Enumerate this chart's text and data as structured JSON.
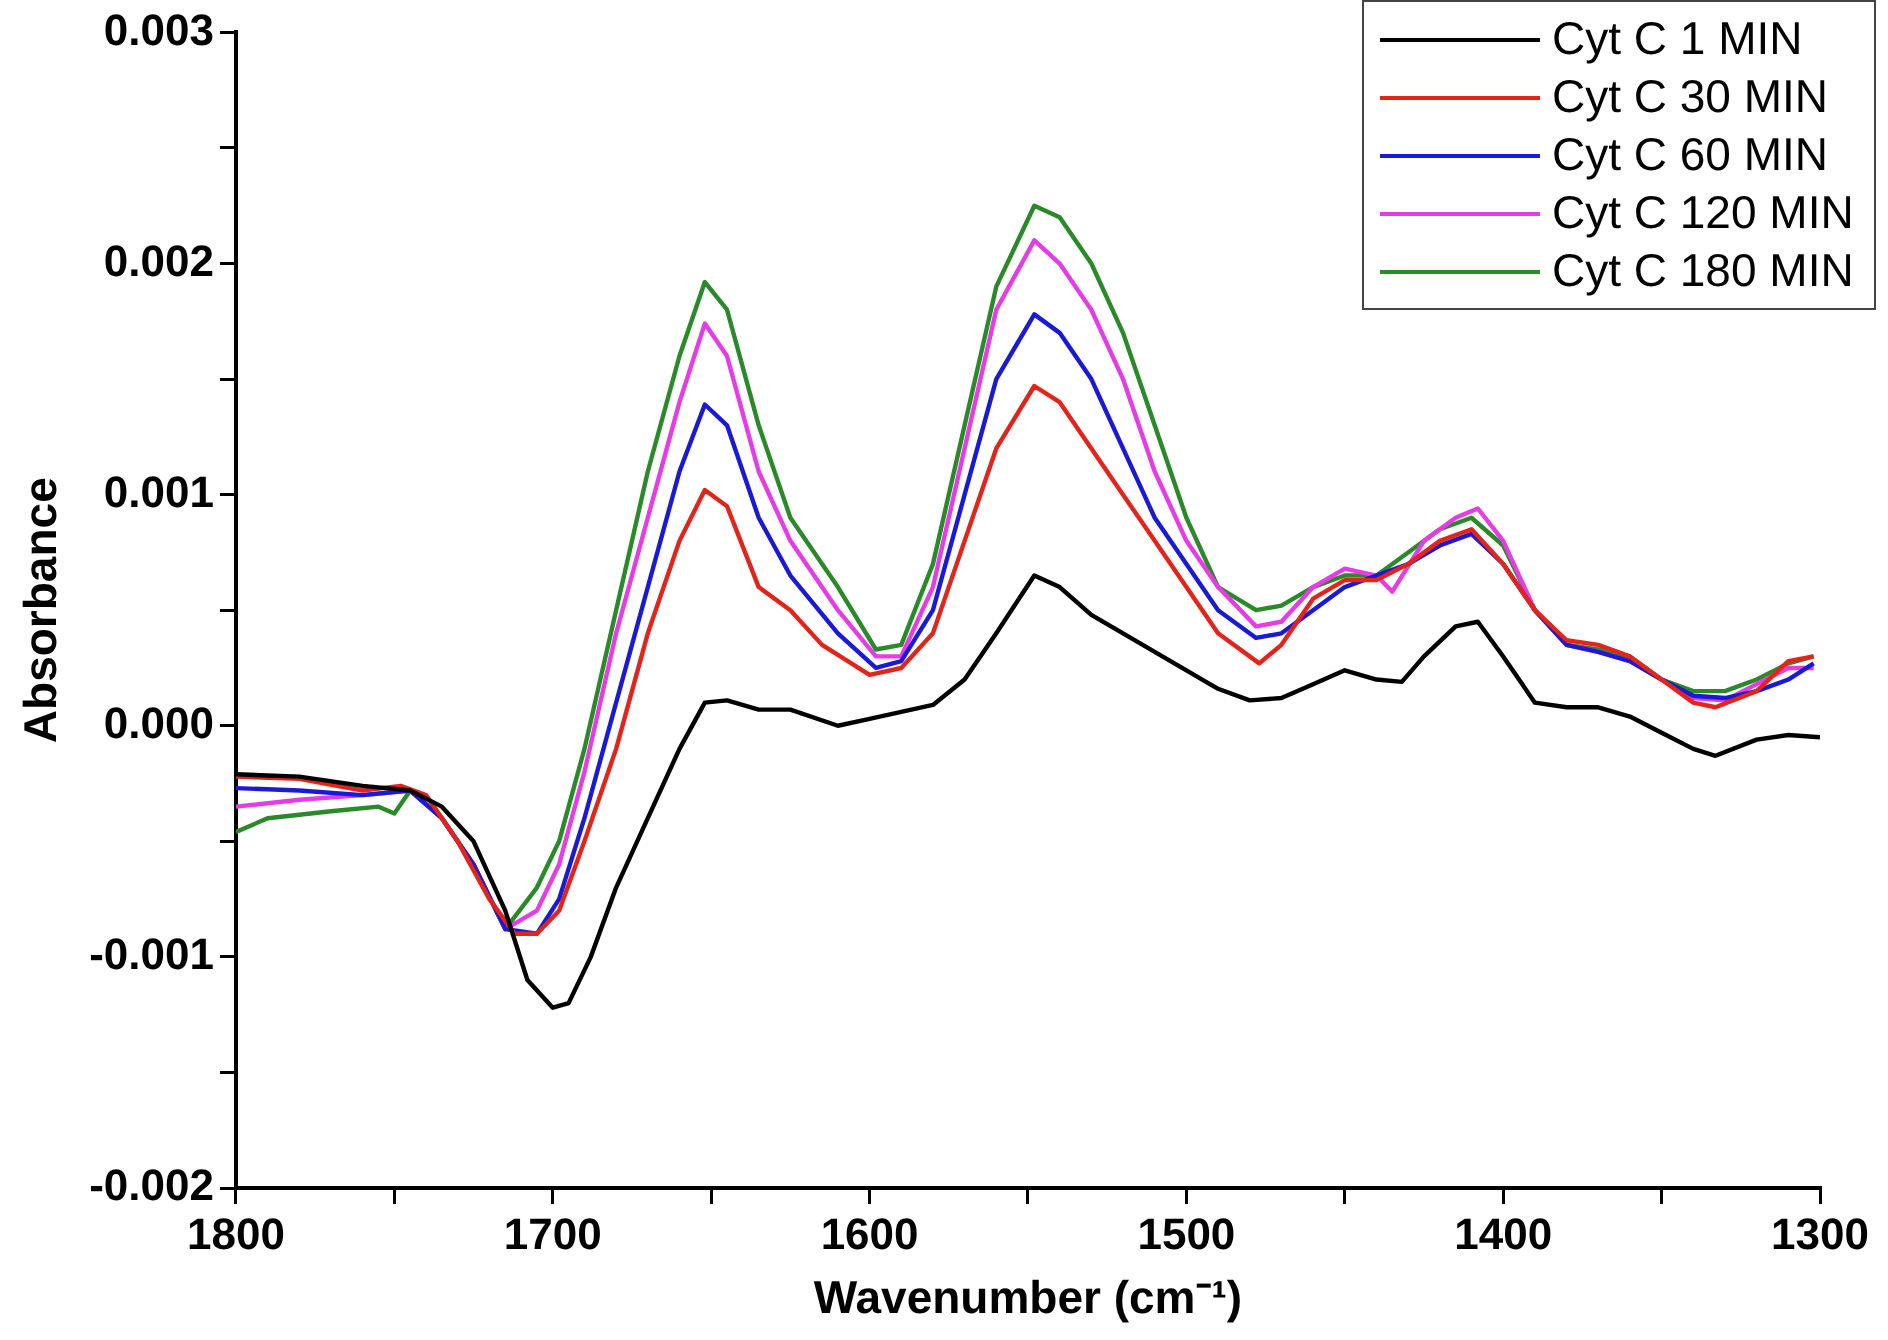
{
  "chart_data": {
    "type": "line",
    "xlabel": "Wavenumber (cm⁻¹)",
    "ylabel": "Absorbance",
    "xlim": [
      1800,
      1300
    ],
    "xticks": [
      1800,
      {
        "value": 1750,
        "label": null
      },
      1700,
      {
        "value": 1650,
        "label": null
      },
      1600,
      {
        "value": 1550,
        "label": null
      },
      1500,
      {
        "value": 1450,
        "label": null
      },
      1400,
      {
        "value": 1350,
        "label": null
      },
      1300
    ],
    "ylim": [
      -0.002,
      0.003
    ],
    "yticks": [
      {
        "value": -0.002,
        "label": "-0.002"
      },
      {
        "value": -0.0015,
        "label": null
      },
      {
        "value": -0.001,
        "label": "-0.001"
      },
      {
        "value": -0.0005,
        "label": null
      },
      {
        "value": 0,
        "label": "0.000"
      },
      {
        "value": 0.0005,
        "label": null
      },
      {
        "value": 0.001,
        "label": "0.001"
      },
      {
        "value": 0.0015,
        "label": null
      },
      {
        "value": 0.002,
        "label": "0.002"
      },
      {
        "value": 0.0025,
        "label": null
      },
      {
        "value": 0.003,
        "label": "0.003"
      }
    ],
    "grid": false,
    "legend": "top right",
    "marker": "none",
    "line_style": "solid",
    "series": [
      {
        "name": "Cyt C 1 MIN",
        "color": "#000000",
        "x": [
          1800,
          1780,
          1760,
          1745,
          1735,
          1725,
          1715,
          1708,
          1700,
          1695,
          1688,
          1680,
          1670,
          1660,
          1652,
          1645,
          1635,
          1625,
          1610,
          1600,
          1590,
          1580,
          1570,
          1560,
          1548,
          1540,
          1530,
          1520,
          1510,
          1500,
          1490,
          1480,
          1470,
          1460,
          1450,
          1440,
          1432,
          1425,
          1415,
          1408,
          1400,
          1390,
          1380,
          1370,
          1360,
          1350,
          1340,
          1333,
          1320,
          1310,
          1300
        ],
        "values": [
          -0.00021,
          -0.00022,
          -0.00026,
          -0.00028,
          -0.00035,
          -0.0005,
          -0.0008,
          -0.0011,
          -0.00122,
          -0.0012,
          -0.001,
          -0.0007,
          -0.0004,
          -0.0001,
          0.0001,
          0.00011,
          7e-05,
          7e-05,
          0,
          3e-05,
          6e-05,
          9e-05,
          0.0002,
          0.0004,
          0.00065,
          0.0006,
          0.00048,
          0.0004,
          0.00032,
          0.00024,
          0.00016,
          0.00011,
          0.00012,
          0.00018,
          0.00024,
          0.0002,
          0.00019,
          0.0003,
          0.00043,
          0.00045,
          0.0003,
          0.0001,
          8e-05,
          8e-05,
          4e-05,
          -3e-05,
          -0.0001,
          -0.00013,
          -6e-05,
          -4e-05,
          -5e-05
        ]
      },
      {
        "name": "Cyt C 30 MIN",
        "color": "#e3241b",
        "x": [
          1800,
          1780,
          1760,
          1748,
          1740,
          1730,
          1720,
          1712,
          1705,
          1698,
          1690,
          1680,
          1670,
          1660,
          1652,
          1645,
          1635,
          1625,
          1615,
          1600,
          1590,
          1580,
          1570,
          1560,
          1548,
          1540,
          1530,
          1520,
          1510,
          1500,
          1490,
          1477,
          1470,
          1460,
          1450,
          1440,
          1430,
          1420,
          1410,
          1400,
          1390,
          1380,
          1370,
          1360,
          1350,
          1340,
          1333,
          1320,
          1310,
          1302
        ],
        "values": [
          -0.00022,
          -0.00023,
          -0.00028,
          -0.00026,
          -0.0003,
          -0.0005,
          -0.00075,
          -0.0009,
          -0.0009,
          -0.0008,
          -0.0005,
          -0.0001,
          0.0004,
          0.0008,
          0.00102,
          0.00095,
          0.0006,
          0.0005,
          0.00035,
          0.00022,
          0.00025,
          0.0004,
          0.0008,
          0.0012,
          0.00147,
          0.0014,
          0.0012,
          0.001,
          0.0008,
          0.0006,
          0.0004,
          0.00027,
          0.00035,
          0.00055,
          0.00063,
          0.00063,
          0.0007,
          0.0008,
          0.00085,
          0.0007,
          0.0005,
          0.00037,
          0.00035,
          0.0003,
          0.0002,
          0.0001,
          8e-05,
          0.00015,
          0.00028,
          0.0003
        ]
      },
      {
        "name": "Cyt C 60 MIN",
        "color": "#1a1ad6",
        "x": [
          1800,
          1780,
          1760,
          1745,
          1735,
          1725,
          1715,
          1705,
          1698,
          1690,
          1680,
          1670,
          1660,
          1652,
          1645,
          1635,
          1625,
          1610,
          1598,
          1590,
          1580,
          1570,
          1560,
          1548,
          1540,
          1530,
          1520,
          1510,
          1500,
          1490,
          1478,
          1470,
          1460,
          1450,
          1440,
          1430,
          1420,
          1410,
          1400,
          1390,
          1380,
          1370,
          1360,
          1350,
          1340,
          1330,
          1320,
          1310,
          1302
        ],
        "values": [
          -0.00027,
          -0.00028,
          -0.0003,
          -0.00028,
          -0.0004,
          -0.0006,
          -0.00088,
          -0.0009,
          -0.00075,
          -0.0004,
          0.0001,
          0.0006,
          0.0011,
          0.00139,
          0.0013,
          0.0009,
          0.00065,
          0.0004,
          0.00025,
          0.00028,
          0.0005,
          0.001,
          0.0015,
          0.00178,
          0.0017,
          0.0015,
          0.0012,
          0.0009,
          0.0007,
          0.0005,
          0.00038,
          0.0004,
          0.0005,
          0.0006,
          0.00065,
          0.0007,
          0.00078,
          0.00083,
          0.0007,
          0.0005,
          0.00035,
          0.00032,
          0.00028,
          0.0002,
          0.00013,
          0.00012,
          0.00015,
          0.0002,
          0.00027
        ]
      },
      {
        "name": "Cyt C 120 MIN",
        "color": "#e63ce6",
        "x": [
          1800,
          1780,
          1760,
          1745,
          1735,
          1725,
          1715,
          1705,
          1698,
          1690,
          1680,
          1670,
          1660,
          1652,
          1645,
          1635,
          1625,
          1610,
          1598,
          1590,
          1580,
          1570,
          1560,
          1548,
          1540,
          1530,
          1520,
          1510,
          1500,
          1490,
          1478,
          1470,
          1460,
          1450,
          1440,
          1435,
          1425,
          1415,
          1408,
          1400,
          1390,
          1380,
          1370,
          1360,
          1350,
          1340,
          1330,
          1320,
          1310,
          1302
        ],
        "values": [
          -0.00035,
          -0.00032,
          -0.0003,
          -0.00028,
          -0.0004,
          -0.0006,
          -0.00088,
          -0.0008,
          -0.0006,
          -0.0002,
          0.0004,
          0.0009,
          0.0014,
          0.00174,
          0.0016,
          0.0011,
          0.0008,
          0.0005,
          0.0003,
          0.0003,
          0.0006,
          0.0012,
          0.0018,
          0.0021,
          0.002,
          0.0018,
          0.0015,
          0.0011,
          0.0008,
          0.0006,
          0.00043,
          0.00045,
          0.0006,
          0.00068,
          0.00065,
          0.00058,
          0.0008,
          0.0009,
          0.00094,
          0.0008,
          0.0005,
          0.00035,
          0.00032,
          0.00028,
          0.0002,
          0.00012,
          0.00011,
          0.00018,
          0.00025,
          0.00025
        ]
      },
      {
        "name": "Cyt C 180 MIN",
        "color": "#2a8a2a",
        "x": [
          1800,
          1790,
          1770,
          1755,
          1750,
          1745,
          1735,
          1725,
          1715,
          1705,
          1698,
          1690,
          1680,
          1670,
          1660,
          1652,
          1645,
          1635,
          1625,
          1610,
          1598,
          1590,
          1580,
          1570,
          1560,
          1548,
          1540,
          1530,
          1520,
          1510,
          1500,
          1490,
          1478,
          1470,
          1460,
          1450,
          1440,
          1430,
          1420,
          1410,
          1400,
          1390,
          1380,
          1370,
          1360,
          1350,
          1340,
          1330,
          1320,
          1310,
          1302
        ],
        "values": [
          -0.00046,
          -0.0004,
          -0.00037,
          -0.00035,
          -0.00038,
          -0.00028,
          -0.0004,
          -0.0006,
          -0.00088,
          -0.0007,
          -0.0005,
          -0.0001,
          0.0005,
          0.0011,
          0.0016,
          0.00192,
          0.0018,
          0.0013,
          0.0009,
          0.0006,
          0.00033,
          0.00035,
          0.0007,
          0.0013,
          0.0019,
          0.00225,
          0.0022,
          0.002,
          0.0017,
          0.0013,
          0.0009,
          0.0006,
          0.0005,
          0.00052,
          0.0006,
          0.00065,
          0.00065,
          0.00075,
          0.00085,
          0.0009,
          0.00078,
          0.0005,
          0.00035,
          0.00033,
          0.0003,
          0.0002,
          0.00015,
          0.00015,
          0.0002,
          0.00027,
          0.0003
        ]
      }
    ]
  }
}
